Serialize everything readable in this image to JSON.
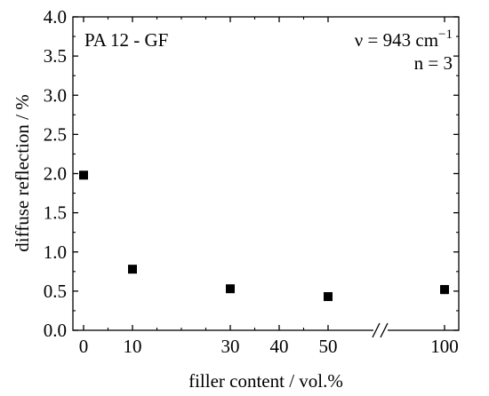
{
  "chart_data": {
    "type": "scatter",
    "title": "",
    "xlabel": "filler content / vol.%",
    "ylabel": "diffuse reflection / %",
    "xlim": [
      -2,
      106
    ],
    "ylim": [
      0.0,
      4.0
    ],
    "grid": false,
    "axis_break": "between 50 and 100",
    "x_ticks": [
      {
        "value": 0,
        "label": "0"
      },
      {
        "value": 10,
        "label": "10"
      },
      {
        "value": 30,
        "label": "30"
      },
      {
        "value": 40,
        "label": "40"
      },
      {
        "value": 50,
        "label": "50"
      },
      {
        "value": 100,
        "label": "100"
      }
    ],
    "y_ticks": [
      "0.0",
      "0.5",
      "1.0",
      "1.5",
      "2.0",
      "2.5",
      "3.0",
      "3.5",
      "4.0"
    ],
    "annotations": {
      "material": "PA 12 - GF",
      "wavenumber": "ν = 943 cm",
      "wavenumber_exp": "−1",
      "n": "n = 3"
    },
    "series": [
      {
        "marker": "square",
        "color": "#000000",
        "points": [
          {
            "x": 0,
            "y": 1.98,
            "err": 0.02
          },
          {
            "x": 10,
            "y": 0.78,
            "err": 0.04
          },
          {
            "x": 30,
            "y": 0.53,
            "err": 0.04
          },
          {
            "x": 50,
            "y": 0.43,
            "err": 0.04
          },
          {
            "x": 100,
            "y": 0.52,
            "err": 0.05
          }
        ]
      }
    ]
  }
}
